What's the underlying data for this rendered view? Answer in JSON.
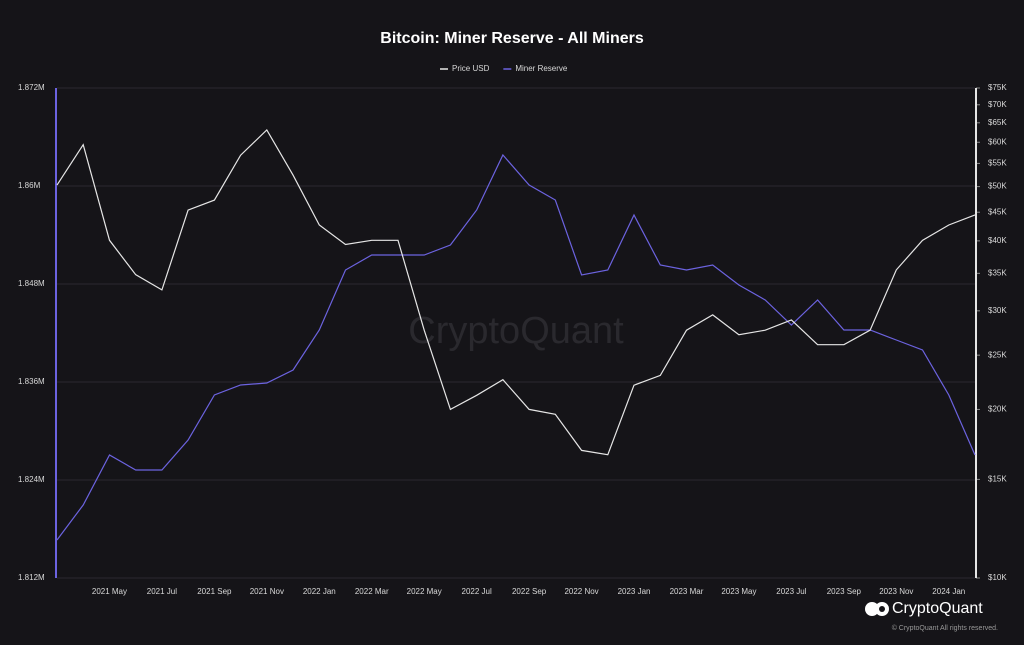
{
  "chart_data": {
    "type": "line",
    "title": "Bitcoin: Miner Reserve - All Miners",
    "watermark": "CryptoQuant",
    "brand": "CryptoQuant",
    "copyright": "© CryptoQuant All rights reserved.",
    "categories": [
      null,
      null,
      "2021 May",
      null,
      "2021 Jul",
      null,
      "2021 Sep",
      null,
      "2021 Nov",
      null,
      "2022 Jan",
      null,
      "2022 Mar",
      null,
      "2022 May",
      null,
      "2022 Jul",
      null,
      "2022 Sep",
      null,
      "2022 Nov",
      null,
      "2023 Jan",
      null,
      "2023 Mar",
      null,
      "2023 May",
      null,
      "2023 Jul",
      null,
      "2023 Sep",
      null,
      "2023 Nov",
      null,
      "2024 Jan",
      null
    ],
    "series": [
      {
        "name": "Price USD",
        "color": "#e6e6e6",
        "axis": "y2",
        "values": [
          50300,
          59400,
          40100,
          34800,
          32700,
          45400,
          47300,
          56900,
          63100,
          52400,
          42700,
          39400,
          40100,
          40100,
          27700,
          20000,
          21200,
          22600,
          20000,
          19600,
          16900,
          16600,
          22100,
          23000,
          27700,
          29500,
          27200,
          27700,
          28900,
          26100,
          26100,
          27700,
          35500,
          40100,
          42700,
          44500
        ]
      },
      {
        "name": "Miner Reserve",
        "color": "#6c63e0",
        "values": [
          1816650,
          1820940,
          1827060,
          1825220,
          1825220,
          1828900,
          1834410,
          1835630,
          1835880,
          1837470,
          1842370,
          1849710,
          1851550,
          1851550,
          1851550,
          1852780,
          1857060,
          1863800,
          1860120,
          1858290,
          1849100,
          1849710,
          1856450,
          1850330,
          1849710,
          1850330,
          1847880,
          1846040,
          1842980,
          1846040,
          1842370,
          1842370,
          1841140,
          1839920,
          1834410,
          1827060
        ]
      }
    ],
    "ylim": [
      1812000,
      1872000
    ],
    "yticks": [
      {
        "value": 1812000,
        "label": "1.812M"
      },
      {
        "value": 1824000,
        "label": "1.824M"
      },
      {
        "value": 1836000,
        "label": "1.836M"
      },
      {
        "value": 1848000,
        "label": "1.848M"
      },
      {
        "value": 1860000,
        "label": "1.86M"
      },
      {
        "value": 1872000,
        "label": "1.872M"
      }
    ],
    "y2lim": [
      10000,
      75000
    ],
    "y2log": true,
    "y2ticks": [
      {
        "value": 10000,
        "label": "$10K"
      },
      {
        "value": 15000,
        "label": "$15K"
      },
      {
        "value": 20000,
        "label": "$20K"
      },
      {
        "value": 25000,
        "label": "$25K"
      },
      {
        "value": 30000,
        "label": "$30K"
      },
      {
        "value": 35000,
        "label": "$35K"
      },
      {
        "value": 40000,
        "label": "$40K"
      },
      {
        "value": 45000,
        "label": "$45K"
      },
      {
        "value": 50000,
        "label": "$50K"
      },
      {
        "value": 55000,
        "label": "$55K"
      },
      {
        "value": 60000,
        "label": "$60K"
      },
      {
        "value": 65000,
        "label": "$65K"
      },
      {
        "value": 70000,
        "label": "$70K"
      },
      {
        "value": 75000,
        "label": "$75K"
      }
    ],
    "grid": true
  }
}
